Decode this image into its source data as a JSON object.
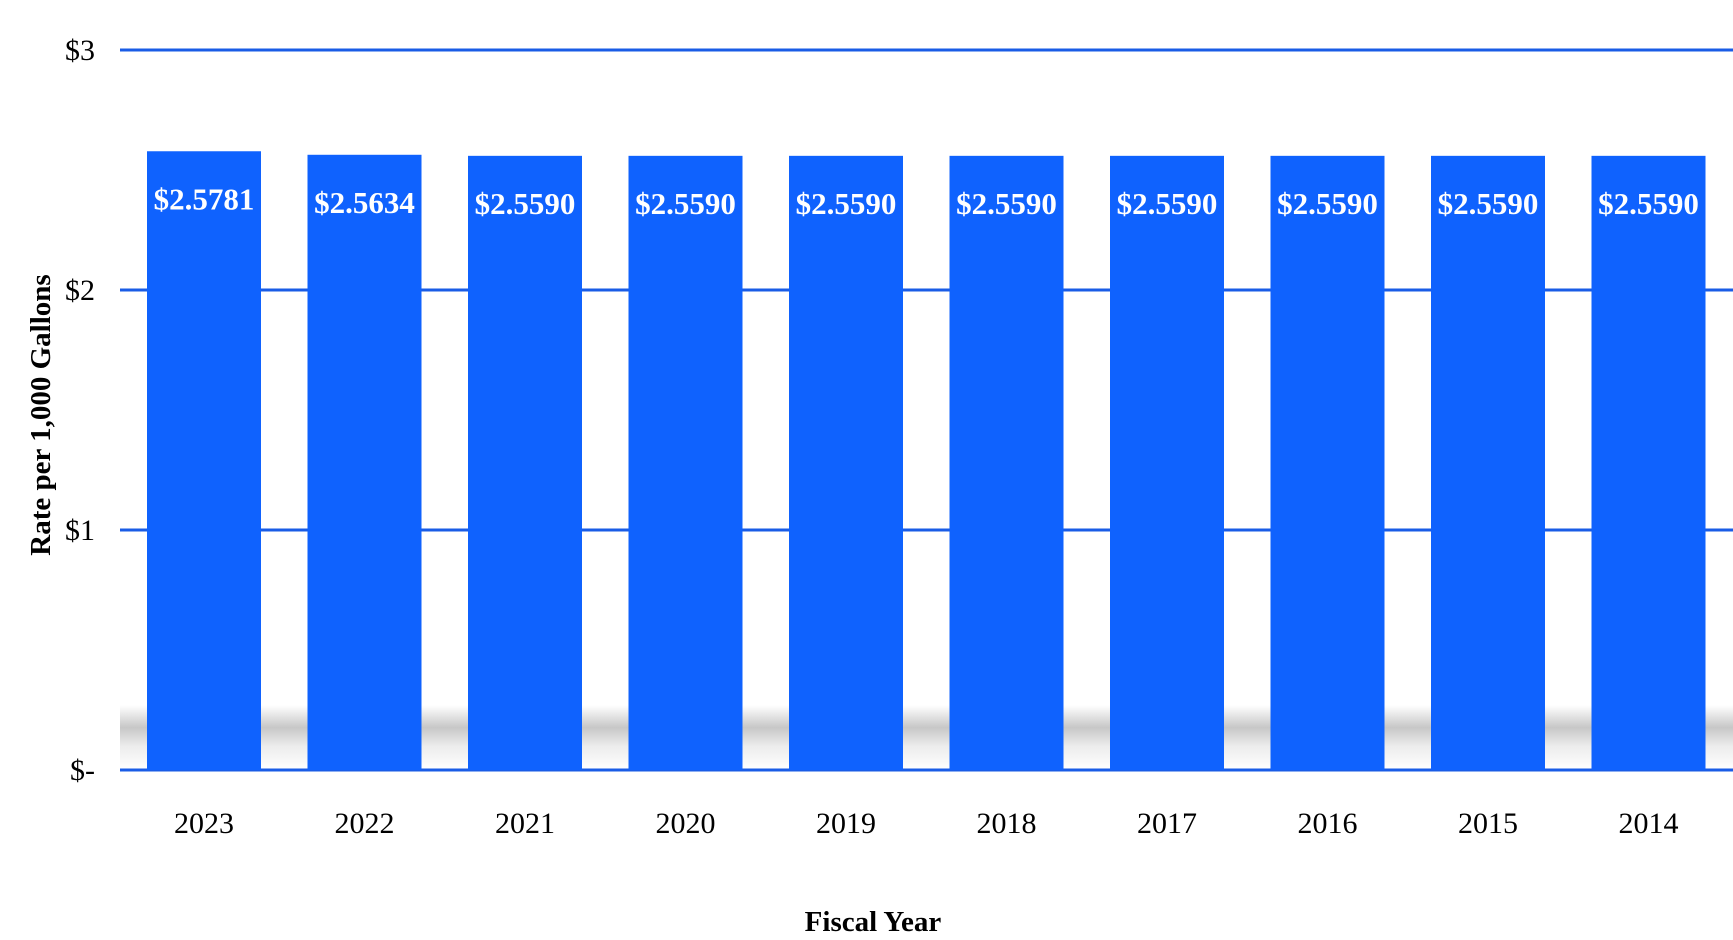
{
  "chart_data": {
    "type": "bar",
    "title": "",
    "xlabel": "Fiscal Year",
    "ylabel": "Rate per 1,000 Gallons",
    "categories": [
      "2023",
      "2022",
      "2021",
      "2020",
      "2019",
      "2018",
      "2017",
      "2016",
      "2015",
      "2014"
    ],
    "values": [
      2.5781,
      2.5634,
      2.559,
      2.559,
      2.559,
      2.559,
      2.559,
      2.559,
      2.559,
      2.559
    ],
    "value_labels": [
      "$2.5781",
      "$2.5634",
      "$2.5590",
      "$2.5590",
      "$2.5590",
      "$2.5590",
      "$2.5590",
      "$2.5590",
      "$2.5590",
      "$2.5590"
    ],
    "ylim": [
      0,
      3
    ],
    "yticks": [
      0,
      1,
      2,
      3
    ],
    "ytick_labels": [
      "$-",
      "$1",
      "$2",
      "$3"
    ],
    "grid": true,
    "legend": "none",
    "bar_color": "#0f62fe",
    "grid_color": "#1a5ce6"
  }
}
